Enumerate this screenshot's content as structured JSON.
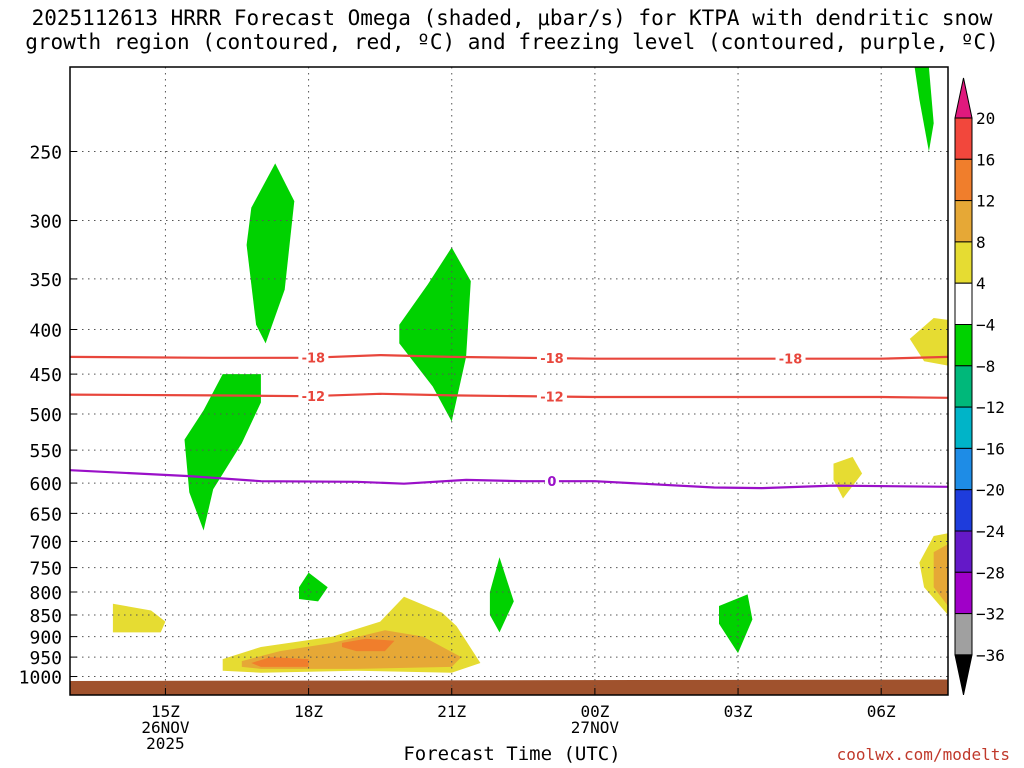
{
  "title_line1": "2025112613 HRRR Forecast Omega (shaded, μbar/s) for KTPA with dendritic snow",
  "title_line2": "growth region (contoured, red, ºC) and freezing level (contoured, purple, ºC)",
  "watermark": "coolwx.com/modelts",
  "chart_data": {
    "type": "heatmap",
    "title": "2025112613 HRRR Forecast Omega (shaded, μbar/s) for KTPA with dendritic snow growth region (contoured, red, ºC) and freezing level (contoured, purple, ºC)",
    "xlabel": "Forecast Time (UTC)",
    "ylabel": "",
    "x_unit": "hours since 2025-11-26 13Z",
    "xlim": [
      0,
      18.4
    ],
    "ylim": [
      1050,
      200
    ],
    "y_scale": "log-pressure",
    "y_ticks": [
      250,
      300,
      350,
      400,
      450,
      500,
      550,
      600,
      650,
      700,
      750,
      800,
      850,
      900,
      950,
      1000
    ],
    "x_ticks": [
      {
        "x": 2,
        "lines": [
          "15Z",
          "26NOV",
          "2025"
        ]
      },
      {
        "x": 5,
        "lines": [
          "18Z"
        ]
      },
      {
        "x": 8,
        "lines": [
          "21Z"
        ]
      },
      {
        "x": 11,
        "lines": [
          "00Z",
          "27NOV"
        ]
      },
      {
        "x": 14,
        "lines": [
          "03Z"
        ]
      },
      {
        "x": 17,
        "lines": [
          "06Z"
        ]
      }
    ],
    "colorbar": {
      "unit": "μbar/s",
      "labels": [
        20,
        16,
        12,
        8,
        4,
        -4,
        -8,
        -12,
        -16,
        -20,
        -24,
        -28,
        -32,
        -36
      ],
      "bins": [
        {
          "range": "> 20",
          "color": "#e0197d"
        },
        {
          "range": "16 to 20",
          "color": "#f2473c"
        },
        {
          "range": "12 to 16",
          "color": "#f07e2c"
        },
        {
          "range": "8 to 12",
          "color": "#e6a836"
        },
        {
          "range": "4 to 8",
          "color": "#e6dc32"
        },
        {
          "range": "-4 to 4",
          "color": "#ffffff"
        },
        {
          "range": "-8 to -4",
          "color": "#00d200"
        },
        {
          "range": "-12 to -8",
          "color": "#00b87a"
        },
        {
          "range": "-16 to -12",
          "color": "#00b4c8"
        },
        {
          "range": "-20 to -16",
          "color": "#1e8ce6"
        },
        {
          "range": "-24 to -20",
          "color": "#1e3cdc"
        },
        {
          "range": "-28 to -24",
          "color": "#6419c8"
        },
        {
          "range": "-32 to -28",
          "color": "#a000c8"
        },
        {
          "range": "-36 to -32",
          "color": "#a0a0a0"
        },
        {
          "range": "< -36",
          "color": "#000000"
        }
      ]
    },
    "contours": [
      {
        "name": "dgz -18",
        "label": "-18",
        "color": "#e8463c",
        "points": [
          [
            0,
            430
          ],
          [
            3,
            431
          ],
          [
            5,
            431
          ],
          [
            6.5,
            428
          ],
          [
            8,
            430
          ],
          [
            11,
            432
          ],
          [
            14,
            432
          ],
          [
            17,
            432
          ],
          [
            18.4,
            430
          ]
        ],
        "label_x": [
          5.1,
          10.1,
          15.1
        ]
      },
      {
        "name": "dgz -12",
        "label": "-12",
        "color": "#e8463c",
        "points": [
          [
            0,
            475
          ],
          [
            3,
            476
          ],
          [
            5,
            477
          ],
          [
            6.5,
            474
          ],
          [
            8,
            476
          ],
          [
            11,
            478
          ],
          [
            14,
            478
          ],
          [
            17,
            478
          ],
          [
            18.4,
            479
          ]
        ],
        "label_x": [
          5.1,
          10.1
        ]
      },
      {
        "name": "freezing 0",
        "label": "0",
        "color": "#9a10c8",
        "points": [
          [
            0,
            580
          ],
          [
            2.5,
            589
          ],
          [
            4,
            597
          ],
          [
            6,
            598
          ],
          [
            7,
            601
          ],
          [
            8.3,
            595
          ],
          [
            9.5,
            597
          ],
          [
            11,
            597
          ],
          [
            13.5,
            607
          ],
          [
            14.5,
            608
          ],
          [
            16,
            604
          ],
          [
            18.4,
            606
          ]
        ],
        "label_x": [
          10.1
        ]
      }
    ],
    "regions": [
      {
        "name": "upward 300mb",
        "value_bin": "-8 to -4",
        "color": "#00d200",
        "points": [
          [
            3.8,
            290
          ],
          [
            4.3,
            258
          ],
          [
            4.7,
            285
          ],
          [
            4.5,
            360
          ],
          [
            4.1,
            415
          ],
          [
            3.9,
            395
          ],
          [
            3.7,
            320
          ]
        ]
      },
      {
        "name": "upward 500mb",
        "value_bin": "-8 to -4",
        "color": "#00d200",
        "points": [
          [
            2.4,
            535
          ],
          [
            2.8,
            495
          ],
          [
            3.2,
            450
          ],
          [
            4.0,
            450
          ],
          [
            4.0,
            485
          ],
          [
            3.6,
            540
          ],
          [
            3.0,
            610
          ],
          [
            2.8,
            680
          ],
          [
            2.5,
            615
          ]
        ]
      },
      {
        "name": "upward 380mb",
        "value_bin": "-8 to -4",
        "color": "#00d200",
        "points": [
          [
            6.9,
            395
          ],
          [
            7.5,
            355
          ],
          [
            8.0,
            322
          ],
          [
            8.4,
            352
          ],
          [
            8.3,
            430
          ],
          [
            8.0,
            510
          ],
          [
            7.6,
            465
          ],
          [
            6.9,
            415
          ]
        ]
      },
      {
        "name": "upward 800mb",
        "value_bin": "-8 to -4",
        "color": "#00d200",
        "points": [
          [
            4.8,
            790
          ],
          [
            5.0,
            760
          ],
          [
            5.4,
            790
          ],
          [
            5.2,
            820
          ],
          [
            4.8,
            815
          ]
        ]
      },
      {
        "name": "upward 810mb",
        "value_bin": "-8 to -4",
        "color": "#00d200",
        "points": [
          [
            8.8,
            800
          ],
          [
            9.0,
            730
          ],
          [
            9.3,
            820
          ],
          [
            9.0,
            890
          ],
          [
            8.8,
            850
          ]
        ]
      },
      {
        "name": "upward 850mb",
        "value_bin": "-8 to -4",
        "color": "#00d200",
        "points": [
          [
            13.6,
            830
          ],
          [
            14.2,
            805
          ],
          [
            14.3,
            860
          ],
          [
            14.0,
            940
          ],
          [
            13.6,
            870
          ]
        ]
      },
      {
        "name": "upward top right",
        "value_bin": "-8 to -4",
        "color": "#00d200",
        "points": [
          [
            17.7,
            200
          ],
          [
            18.0,
            200
          ],
          [
            18.1,
            232
          ],
          [
            18.0,
            250
          ],
          [
            17.8,
            218
          ]
        ]
      },
      {
        "name": "downward 860mb",
        "value_bin": "4 to 8",
        "color": "#e6dc32",
        "points": [
          [
            0.9,
            825
          ],
          [
            1.7,
            840
          ],
          [
            2.0,
            865
          ],
          [
            1.9,
            890
          ],
          [
            0.9,
            890
          ]
        ]
      },
      {
        "name": "downward 930mb",
        "value_bin": "4 to 8",
        "color": "#e6dc32",
        "points": [
          [
            3.2,
            955
          ],
          [
            4.0,
            925
          ],
          [
            5.5,
            900
          ],
          [
            6.5,
            865
          ],
          [
            7.0,
            810
          ],
          [
            7.8,
            845
          ],
          [
            8.1,
            875
          ],
          [
            8.6,
            965
          ],
          [
            8.0,
            990
          ],
          [
            6.0,
            985
          ],
          [
            4.0,
            990
          ],
          [
            3.2,
            985
          ]
        ]
      },
      {
        "name": "downward 940mb inner",
        "value_bin": "8 to 12",
        "color": "#e6a836",
        "points": [
          [
            3.6,
            960
          ],
          [
            4.4,
            935
          ],
          [
            5.5,
            915
          ],
          [
            6.6,
            885
          ],
          [
            7.4,
            900
          ],
          [
            8.2,
            950
          ],
          [
            8.0,
            975
          ],
          [
            6.0,
            980
          ],
          [
            4.0,
            980
          ],
          [
            3.6,
            975
          ]
        ]
      },
      {
        "name": "downward 925mb core",
        "value_bin": "12 to 16",
        "color": "#f07e2c",
        "points": [
          [
            5.7,
            915
          ],
          [
            6.2,
            905
          ],
          [
            6.8,
            910
          ],
          [
            6.6,
            935
          ],
          [
            6.0,
            935
          ],
          [
            5.7,
            925
          ]
        ]
      },
      {
        "name": "downward 955mb core",
        "value_bin": "12 to 16",
        "color": "#f07e2c",
        "points": [
          [
            3.8,
            965
          ],
          [
            4.2,
            950
          ],
          [
            5.0,
            955
          ],
          [
            5.0,
            975
          ],
          [
            4.0,
            975
          ]
        ]
      },
      {
        "name": "downward 415mb",
        "value_bin": "4 to 8",
        "color": "#e6dc32",
        "points": [
          [
            17.6,
            410
          ],
          [
            18.1,
            388
          ],
          [
            18.4,
            390
          ],
          [
            18.4,
            440
          ],
          [
            17.9,
            435
          ]
        ]
      },
      {
        "name": "downward 580mb",
        "value_bin": "4 to 8",
        "color": "#e6dc32",
        "points": [
          [
            16.0,
            570
          ],
          [
            16.4,
            560
          ],
          [
            16.6,
            585
          ],
          [
            16.2,
            625
          ],
          [
            16.0,
            595
          ]
        ]
      },
      {
        "name": "downward 730mb",
        "value_bin": "4 to 8",
        "color": "#e6dc32",
        "points": [
          [
            17.8,
            740
          ],
          [
            18.1,
            690
          ],
          [
            18.4,
            685
          ],
          [
            18.4,
            850
          ],
          [
            17.9,
            790
          ]
        ]
      },
      {
        "name": "downward 745mb core",
        "value_bin": "8 to 12",
        "color": "#e6a836",
        "points": [
          [
            18.1,
            720
          ],
          [
            18.4,
            705
          ],
          [
            18.4,
            830
          ],
          [
            18.1,
            790
          ]
        ]
      },
      {
        "name": "ground",
        "value_bin": "terrain",
        "color": "#a0522d",
        "points": [
          [
            0,
            1012
          ],
          [
            18.4,
            1008
          ],
          [
            18.4,
            1050
          ],
          [
            0,
            1050
          ]
        ]
      }
    ]
  }
}
